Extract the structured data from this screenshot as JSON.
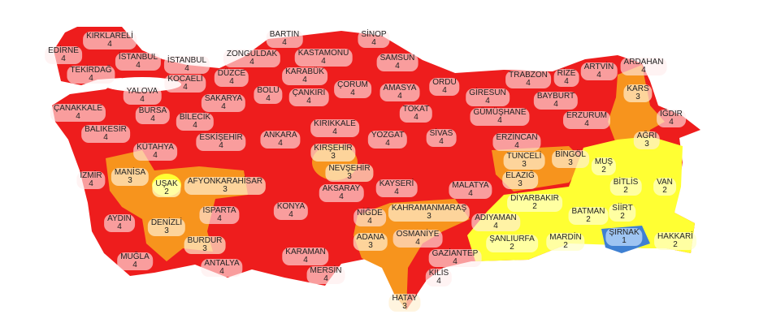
{
  "colors": {
    "level_4": "#ee1d1d",
    "level_3": "#f7941d",
    "level_2": "#ffff33",
    "level_1": "#3f80d2",
    "sea": "#ffffff"
  },
  "provinces": [
    {
      "name": "KIRKLARELİ",
      "level": "4"
    },
    {
      "name": "EDİRNE",
      "level": "4"
    },
    {
      "name": "TEKİRDAĞ",
      "level": "4"
    },
    {
      "name": "İSTANBUL",
      "level": "4"
    },
    {
      "name": "İSTANBUL",
      "level": "4"
    },
    {
      "name": "KOCAELİ",
      "level": "4"
    },
    {
      "name": "SAKARYA",
      "level": "4"
    },
    {
      "name": "DÜZCE",
      "level": "4"
    },
    {
      "name": "BOLU",
      "level": "4"
    },
    {
      "name": "YALOVA",
      "level": "4"
    },
    {
      "name": "ZONGULDAK",
      "level": "4"
    },
    {
      "name": "BARTIN",
      "level": "4"
    },
    {
      "name": "KARABÜK",
      "level": "4"
    },
    {
      "name": "KASTAMONU",
      "level": "4"
    },
    {
      "name": "SİNOP",
      "level": "4"
    },
    {
      "name": "SAMSUN",
      "level": "4"
    },
    {
      "name": "ÇANKIRI",
      "level": "4"
    },
    {
      "name": "ÇORUM",
      "level": "4"
    },
    {
      "name": "AMASYA",
      "level": "4"
    },
    {
      "name": "ORDU",
      "level": "4"
    },
    {
      "name": "TOKAT",
      "level": "4"
    },
    {
      "name": "GİRESUN",
      "level": "4"
    },
    {
      "name": "TRABZON",
      "level": "4"
    },
    {
      "name": "RİZE",
      "level": "4"
    },
    {
      "name": "ARTVİN",
      "level": "4"
    },
    {
      "name": "ARDAHAN",
      "level": "4"
    },
    {
      "name": "KARS",
      "level": "3"
    },
    {
      "name": "GÜMÜŞHANE",
      "level": "4"
    },
    {
      "name": "BAYBURT",
      "level": "4"
    },
    {
      "name": "ERZURUM",
      "level": "4"
    },
    {
      "name": "IĞDIR",
      "level": "4"
    },
    {
      "name": "AĞRI",
      "level": "3"
    },
    {
      "name": "ÇANAKKALE",
      "level": "4"
    },
    {
      "name": "BALIKESİR",
      "level": "4"
    },
    {
      "name": "BURSA",
      "level": "4"
    },
    {
      "name": "BİLECİK",
      "level": "4"
    },
    {
      "name": "ESKİŞEHİR",
      "level": "4"
    },
    {
      "name": "ANKARA",
      "level": "4"
    },
    {
      "name": "KIRIKKALE",
      "level": "4"
    },
    {
      "name": "KIRŞEHİR",
      "level": "3"
    },
    {
      "name": "YOZGAT",
      "level": "4"
    },
    {
      "name": "SİVAS",
      "level": "4"
    },
    {
      "name": "ERZİNCAN",
      "level": "4"
    },
    {
      "name": "TUNCELİ",
      "level": "3"
    },
    {
      "name": "BİNGÖL",
      "level": "3"
    },
    {
      "name": "MUŞ",
      "level": "2"
    },
    {
      "name": "BİTLİS",
      "level": "2"
    },
    {
      "name": "VAN",
      "level": "2"
    },
    {
      "name": "KÜTAHYA",
      "level": "4"
    },
    {
      "name": "NEVŞEHİR",
      "level": "3"
    },
    {
      "name": "KAYSERİ",
      "level": "4"
    },
    {
      "name": "MALATYA",
      "level": "4"
    },
    {
      "name": "ELAZIĞ",
      "level": "3"
    },
    {
      "name": "İZMİR",
      "level": "4"
    },
    {
      "name": "MANİSA",
      "level": "3"
    },
    {
      "name": "UŞAK",
      "level": "2"
    },
    {
      "name": "AFYONKARAHİSAR",
      "level": "3"
    },
    {
      "name": "AKSARAY",
      "level": "4"
    },
    {
      "name": "DİYARBAKIR",
      "level": "2"
    },
    {
      "name": "BATMAN",
      "level": "2"
    },
    {
      "name": "SİİRT",
      "level": "2"
    },
    {
      "name": "ADIYAMAN",
      "level": "4"
    },
    {
      "name": "KAHRAMANMARAŞ",
      "level": "3"
    },
    {
      "name": "KONYA",
      "level": "4"
    },
    {
      "name": "NİĞDE",
      "level": "4"
    },
    {
      "name": "ISPARTA",
      "level": "4"
    },
    {
      "name": "AYDIN",
      "level": "4"
    },
    {
      "name": "DENİZLİ",
      "level": "3"
    },
    {
      "name": "BURDUR",
      "level": "3"
    },
    {
      "name": "ADANA",
      "level": "3"
    },
    {
      "name": "OSMANİYE",
      "level": "4"
    },
    {
      "name": "GAZİANTEP",
      "level": "4"
    },
    {
      "name": "KİLİS",
      "level": "4"
    },
    {
      "name": "ŞANLIURFA",
      "level": "2"
    },
    {
      "name": "MARDİN",
      "level": "2"
    },
    {
      "name": "ŞIRNAK",
      "level": "1"
    },
    {
      "name": "HAKKARİ",
      "level": "2"
    },
    {
      "name": "MUĞLA",
      "level": "4"
    },
    {
      "name": "ANTALYA",
      "level": "4"
    },
    {
      "name": "KARAMAN",
      "level": "4"
    },
    {
      "name": "MERSİN",
      "level": "4"
    },
    {
      "name": "HATAY",
      "level": "3"
    }
  ]
}
